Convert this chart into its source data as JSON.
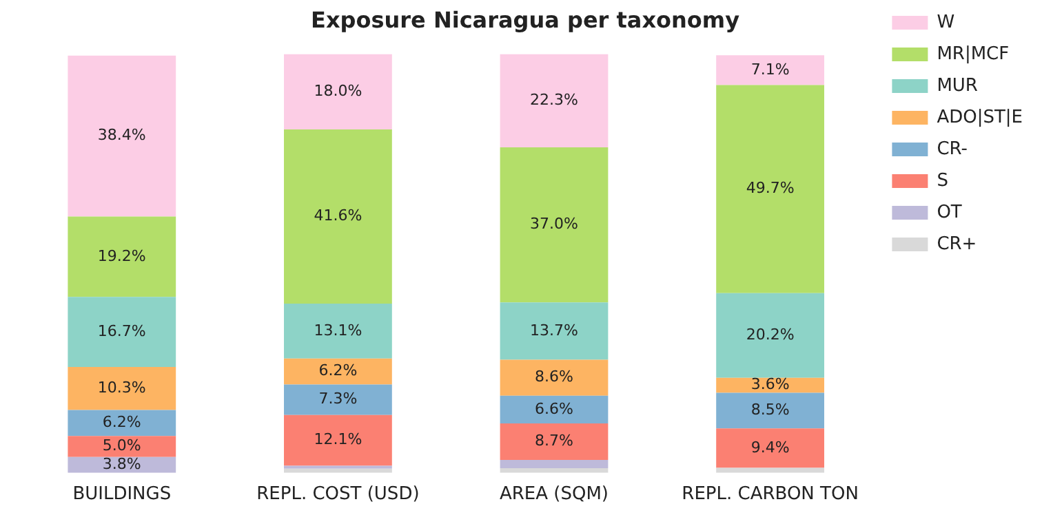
{
  "chart_data": {
    "type": "bar",
    "title": "Exposure Nicaragua per taxonomy",
    "categories": [
      "BUILDINGS",
      "REPL. COST (USD)",
      "AREA (SQM)",
      "REPL. CARBON TON"
    ],
    "stacked": true,
    "legend": "top right",
    "tick_labels": "x",
    "grid": false,
    "series": [
      {
        "name": "CR+",
        "color": "#d9d9d9",
        "values": [
          null,
          1.0,
          1.1,
          1.2
        ],
        "value_labels": [
          null,
          null,
          null,
          null
        ]
      },
      {
        "name": "OT",
        "color": "#bebada",
        "values": [
          3.8,
          0.7,
          2.0,
          null
        ],
        "value_labels": [
          "3.8%",
          null,
          null,
          null
        ]
      },
      {
        "name": "S",
        "color": "#fb8072",
        "values": [
          5.0,
          12.1,
          8.7,
          9.4
        ],
        "value_labels": [
          "5.0%",
          "12.1%",
          "8.7%",
          "9.4%"
        ]
      },
      {
        "name": "CR-",
        "color": "#80b1d3",
        "values": [
          6.2,
          7.3,
          6.6,
          8.5
        ],
        "value_labels": [
          "6.2%",
          "7.3%",
          "6.6%",
          "8.5%"
        ]
      },
      {
        "name": "ADO|ST|E",
        "color": "#fdb462",
        "values": [
          10.3,
          6.2,
          8.6,
          3.6
        ],
        "value_labels": [
          "10.3%",
          "6.2%",
          "8.6%",
          "3.6%"
        ]
      },
      {
        "name": "MUR",
        "color": "#8dd3c7",
        "values": [
          16.7,
          13.1,
          13.7,
          20.2
        ],
        "value_labels": [
          "16.7%",
          "13.1%",
          "13.7%",
          "20.2%"
        ]
      },
      {
        "name": "MR|MCF",
        "color": "#b3de69",
        "values": [
          19.2,
          41.6,
          37.0,
          49.7
        ],
        "value_labels": [
          "19.2%",
          "41.6%",
          "37.0%",
          "49.7%"
        ]
      },
      {
        "name": "W",
        "color": "#fccde5",
        "values": [
          38.4,
          18.0,
          22.3,
          7.1
        ],
        "value_labels": [
          "38.4%",
          "18.0%",
          "22.3%",
          "7.1%"
        ]
      }
    ]
  }
}
